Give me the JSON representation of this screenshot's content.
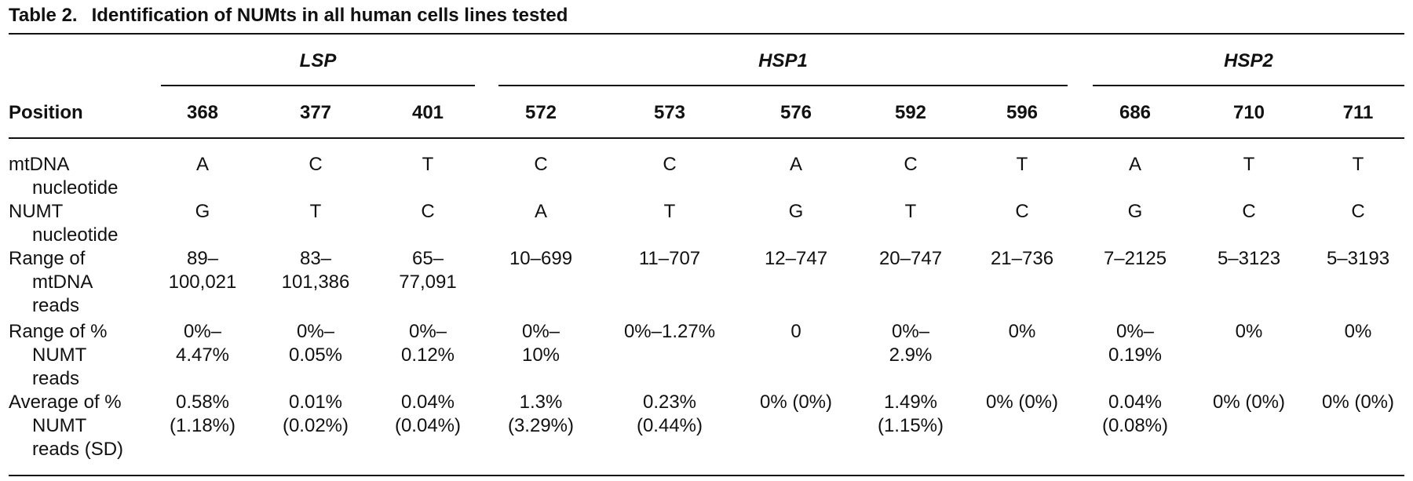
{
  "title": {
    "label": "Table 2.",
    "text": "Identification of NUMts in all human cells lines tested"
  },
  "groups": [
    "LSP",
    "HSP1",
    "HSP2"
  ],
  "position_label": "Position",
  "positions": [
    "368",
    "377",
    "401",
    "572",
    "573",
    "576",
    "592",
    "596",
    "686",
    "710",
    "711"
  ],
  "rows": [
    {
      "label_lines": [
        "mtDNA",
        "nucleotide"
      ],
      "cells": [
        "A",
        "C",
        "T",
        "C",
        "C",
        "A",
        "C",
        "T",
        "A",
        "T",
        "T"
      ]
    },
    {
      "label_lines": [
        "NUMT",
        "nucleotide"
      ],
      "cells": [
        "G",
        "T",
        "C",
        "A",
        "T",
        "G",
        "T",
        "C",
        "G",
        "C",
        "C"
      ]
    },
    {
      "label_lines": [
        "Range of",
        "mtDNA",
        "reads"
      ],
      "cells": [
        "89–\n100,021",
        "83–\n101,386",
        "65–\n77,091",
        "10–699",
        "11–707",
        "12–747",
        "20–747",
        "21–736",
        "7–2125",
        "5–3123",
        "5–3193"
      ]
    },
    {
      "label_lines": [
        "Range of %",
        "NUMT",
        "reads"
      ],
      "cells": [
        "0%–\n4.47%",
        "0%–\n0.05%",
        "0%–\n0.12%",
        "0%–\n10%",
        "0%–1.27%",
        "0",
        "0%–\n2.9%",
        "0%",
        "0%–\n0.19%",
        "0%",
        "0%"
      ]
    },
    {
      "label_lines": [
        "Average of %",
        "NUMT",
        "reads (SD)"
      ],
      "cells": [
        "0.58%\n(1.18%)",
        "0.01%\n(0.02%)",
        "0.04%\n(0.04%)",
        "1.3%\n(3.29%)",
        "0.23%\n(0.44%)",
        "0% (0%)",
        "1.49%\n(1.15%)",
        "0% (0%)",
        "0.04%\n(0.08%)",
        "0% (0%)",
        "0% (0%)"
      ]
    }
  ]
}
